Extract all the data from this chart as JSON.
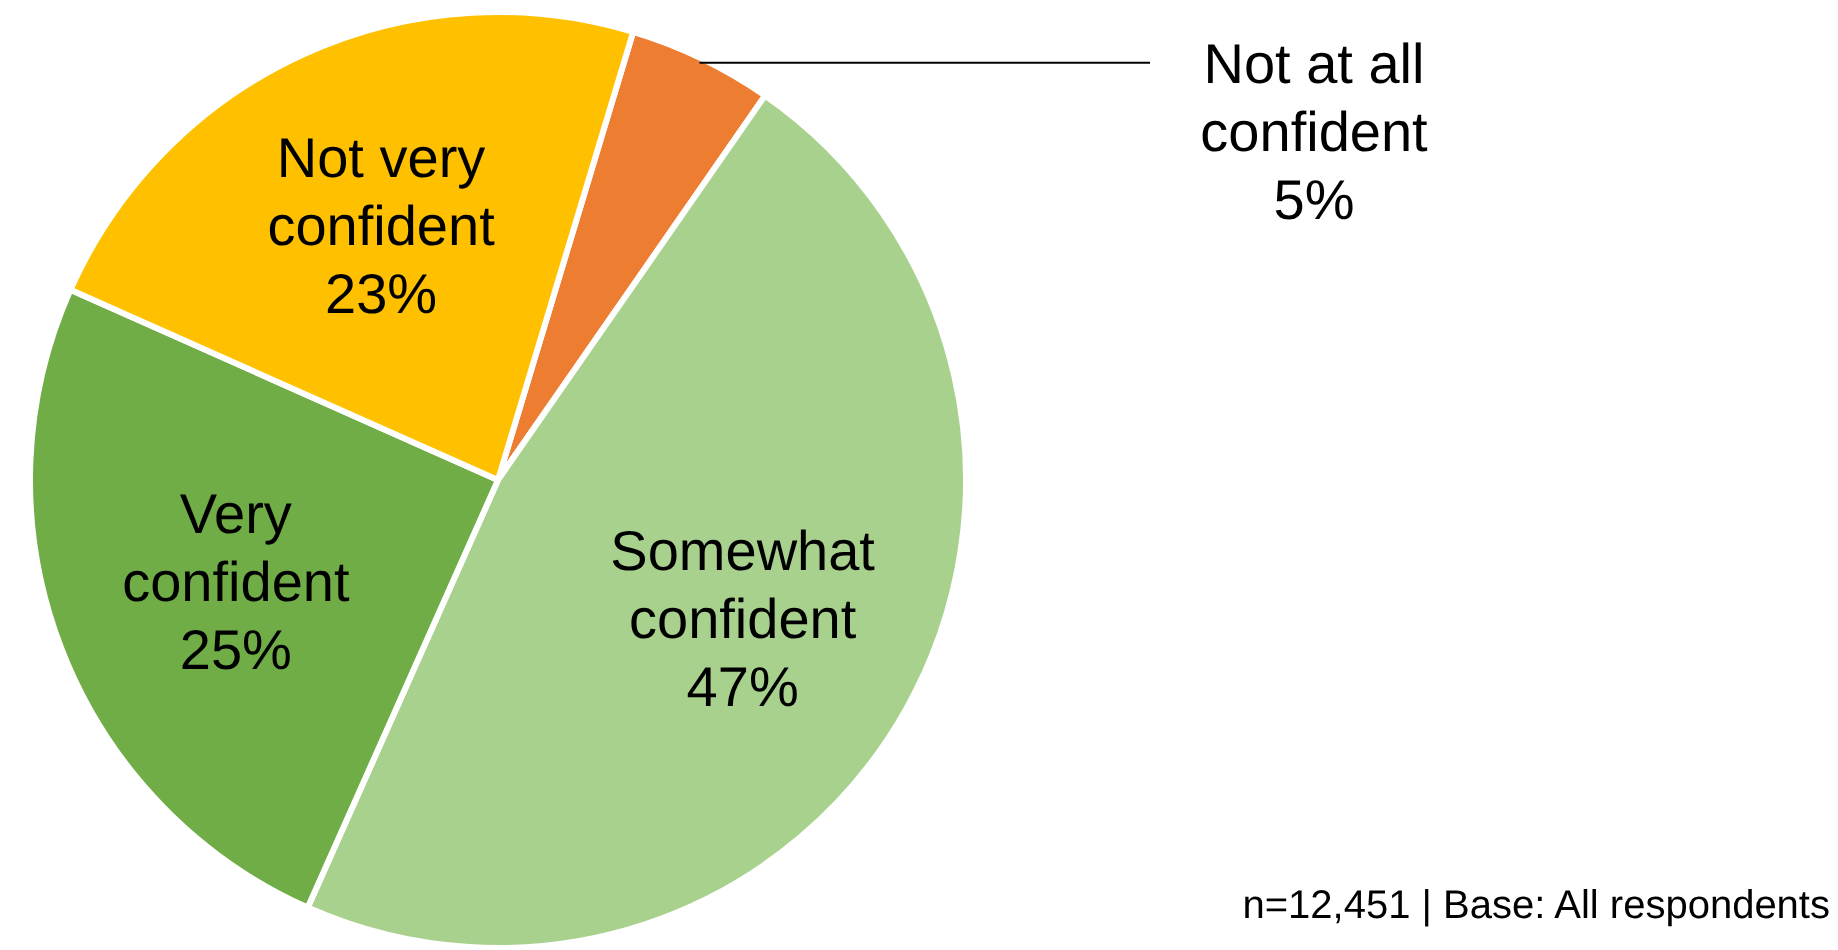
{
  "chart_data": {
    "type": "pie",
    "categories": [
      "Not at all confident",
      "Somewhat confident",
      "Very confident",
      "Not very confident"
    ],
    "values": [
      5,
      47,
      25,
      23
    ],
    "colors": [
      "#ed7d31",
      "#a9d18e",
      "#70ad47",
      "#ffc000"
    ],
    "value_labels": [
      "5%",
      "47%",
      "25%",
      "23%"
    ],
    "annotations": [
      "n=12,451 | Base: All respondents"
    ]
  }
}
